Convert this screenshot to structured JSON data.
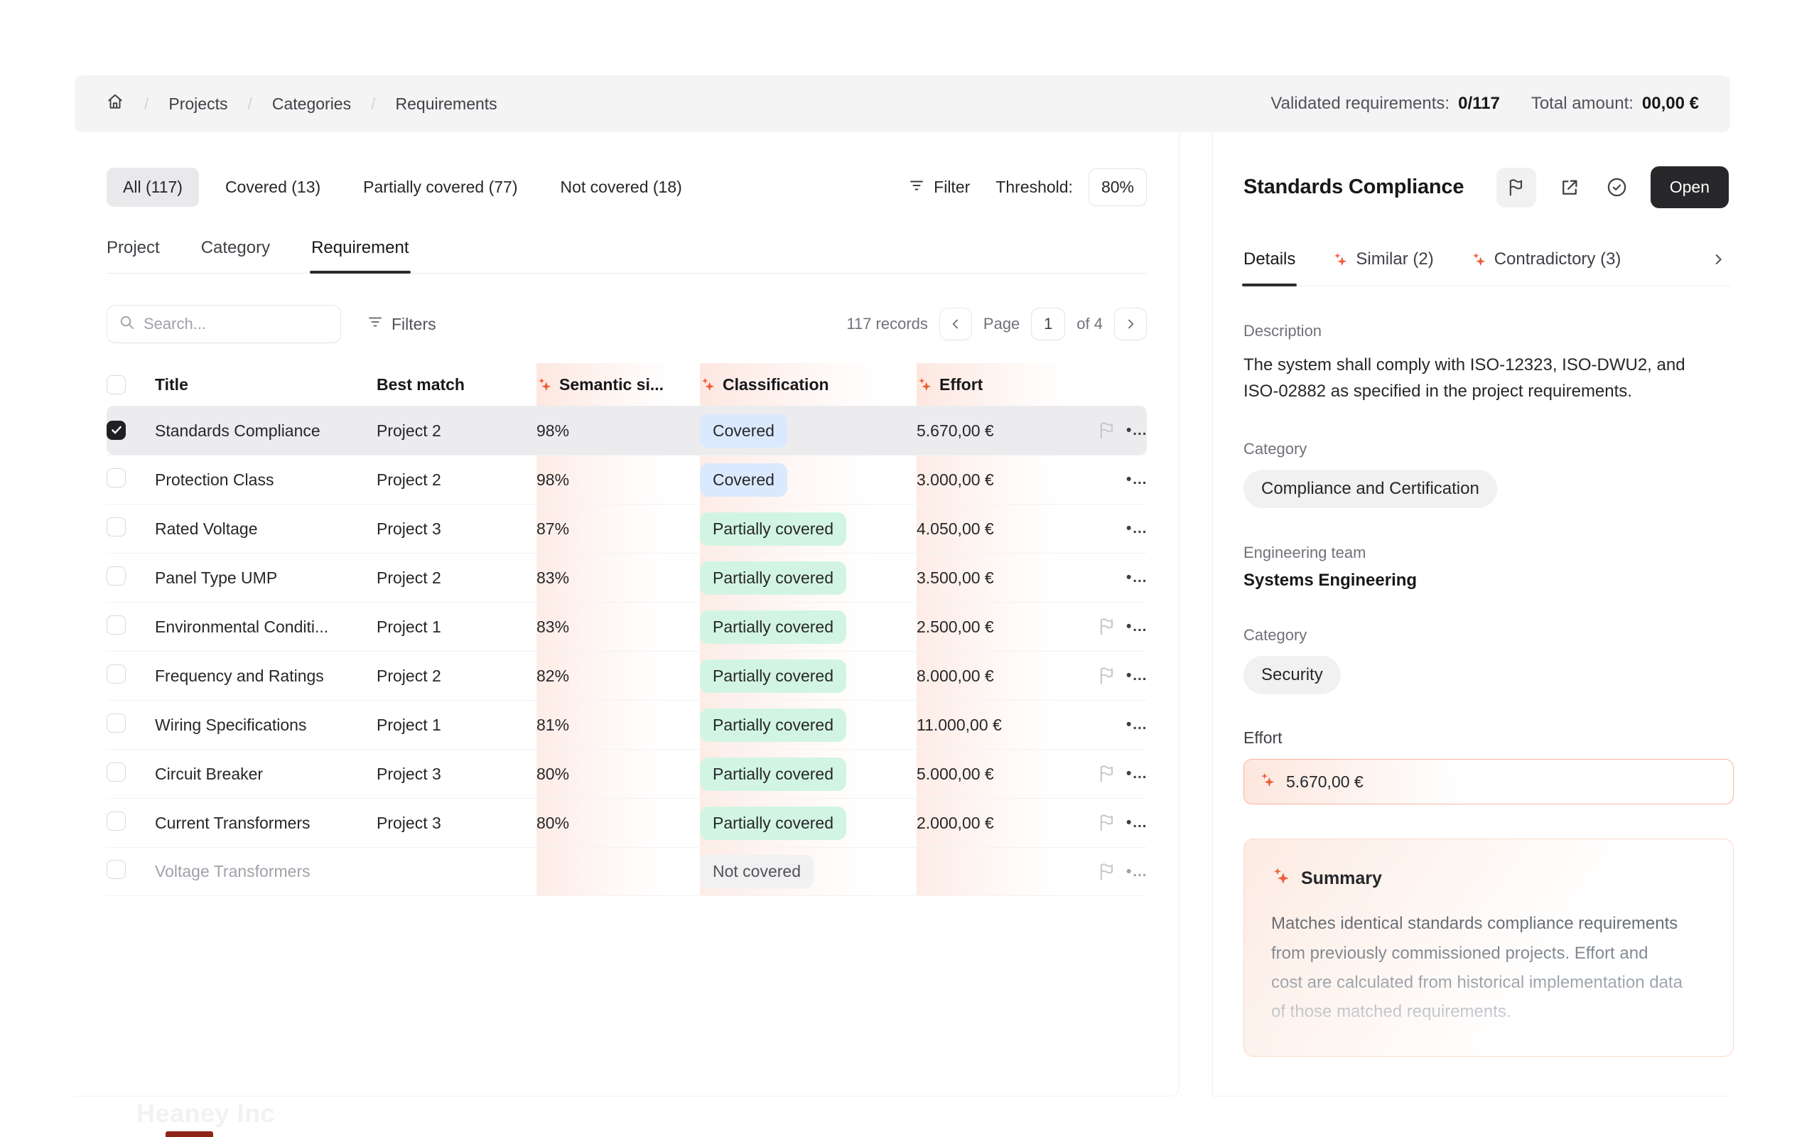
{
  "breadcrumb": {
    "items": [
      "Projects",
      "Categories",
      "Requirements"
    ]
  },
  "header_stats": {
    "validated_label": "Validated requirements:",
    "validated_value": "0/117",
    "total_label": "Total amount:",
    "total_value": "00,00 €"
  },
  "filter_tabs": [
    {
      "label": "All (117)",
      "active": true
    },
    {
      "label": "Covered (13)",
      "active": false
    },
    {
      "label": "Partially covered (77)",
      "active": false
    },
    {
      "label": "Not covered (18)",
      "active": false
    }
  ],
  "toolbar": {
    "filter_label": "Filter",
    "threshold_label": "Threshold:",
    "threshold_value": "80%"
  },
  "view_tabs": [
    {
      "label": "Project",
      "active": false
    },
    {
      "label": "Category",
      "active": false
    },
    {
      "label": "Requirement",
      "active": true
    }
  ],
  "table_controls": {
    "search_placeholder": "Search...",
    "filters_label": "Filters",
    "records": "117 records",
    "page_label": "Page",
    "page_value": "1",
    "of_label": "of 4"
  },
  "table": {
    "columns": [
      {
        "label": "Title",
        "ai": false
      },
      {
        "label": "Best match",
        "ai": false
      },
      {
        "label": "Semantic si...",
        "ai": true
      },
      {
        "label": "Classification",
        "ai": true
      },
      {
        "label": "Effort",
        "ai": true
      }
    ],
    "rows": [
      {
        "title": "Standards Compliance",
        "best_match": "Project 2",
        "semantic": "98%",
        "classification": "Covered",
        "class_type": "covered",
        "effort": "5.670,00 €",
        "flag": true,
        "checked": true,
        "selected": true,
        "muted": false
      },
      {
        "title": "Protection Class",
        "best_match": "Project 2",
        "semantic": "98%",
        "classification": "Covered",
        "class_type": "covered",
        "effort": "3.000,00 €",
        "flag": false,
        "checked": false,
        "selected": false,
        "muted": false
      },
      {
        "title": "Rated Voltage",
        "best_match": "Project 3",
        "semantic": "87%",
        "classification": "Partially covered",
        "class_type": "partial",
        "effort": "4.050,00 €",
        "flag": false,
        "checked": false,
        "selected": false,
        "muted": false
      },
      {
        "title": "Panel Type UMP",
        "best_match": "Project 2",
        "semantic": "83%",
        "classification": "Partially covered",
        "class_type": "partial",
        "effort": "3.500,00 €",
        "flag": false,
        "checked": false,
        "selected": false,
        "muted": false
      },
      {
        "title": "Environmental Conditi...",
        "best_match": "Project 1",
        "semantic": "83%",
        "classification": "Partially covered",
        "class_type": "partial",
        "effort": "2.500,00 €",
        "flag": true,
        "checked": false,
        "selected": false,
        "muted": false
      },
      {
        "title": "Frequency and Ratings",
        "best_match": "Project 2",
        "semantic": "82%",
        "classification": "Partially covered",
        "class_type": "partial",
        "effort": "8.000,00 €",
        "flag": true,
        "checked": false,
        "selected": false,
        "muted": false
      },
      {
        "title": "Wiring Specifications",
        "best_match": "Project 1",
        "semantic": "81%",
        "classification": "Partially covered",
        "class_type": "partial",
        "effort": "11.000,00 €",
        "flag": false,
        "checked": false,
        "selected": false,
        "muted": false
      },
      {
        "title": "Circuit Breaker",
        "best_match": "Project 3",
        "semantic": "80%",
        "classification": "Partially covered",
        "class_type": "partial",
        "effort": "5.000,00 €",
        "flag": true,
        "checked": false,
        "selected": false,
        "muted": false
      },
      {
        "title": "Current Transformers",
        "best_match": "Project 3",
        "semantic": "80%",
        "classification": "Partially covered",
        "class_type": "partial",
        "effort": "2.000,00 €",
        "flag": true,
        "checked": false,
        "selected": false,
        "muted": false
      },
      {
        "title": "Voltage Transformers",
        "best_match": "",
        "semantic": "",
        "classification": "Not covered",
        "class_type": "none",
        "effort": "",
        "flag": true,
        "checked": false,
        "selected": false,
        "muted": true
      }
    ]
  },
  "panel": {
    "title": "Standards Compliance",
    "open_label": "Open",
    "tabs": [
      {
        "label": "Details",
        "active": true,
        "ai": false
      },
      {
        "label": "Similar (2)",
        "active": false,
        "ai": true
      },
      {
        "label": "Contradictory (3)",
        "active": false,
        "ai": true
      }
    ],
    "description_label": "Description",
    "description": "The system shall comply with ISO-12323, ISO-DWU2, and ISO-02882 as specified in the project requirements.",
    "category_label": "Category",
    "category_value": "Compliance and Certification",
    "team_label": "Engineering team",
    "team_value": "Systems Engineering",
    "category2_label": "Category",
    "category2_value": "Security",
    "effort_label": "Effort",
    "effort_value": "5.670,00 €",
    "summary_title": "Summary",
    "summary_text": "Matches identical standards compliance requirements from previously commissioned projects. Effort and cost are calculated from historical implementation data of those matched requirements."
  },
  "watermark": "Heaney Inc",
  "colors": {
    "accent_sparkle": "#ee5f3b",
    "covered_pill": "#dbe9fe",
    "partially_covered_pill": "#d2f5e3",
    "not_covered_pill": "#f1f1f2",
    "open_button": "#27272a",
    "selected_row": "#ececee",
    "topbar_bg": "#f4f4f5"
  }
}
